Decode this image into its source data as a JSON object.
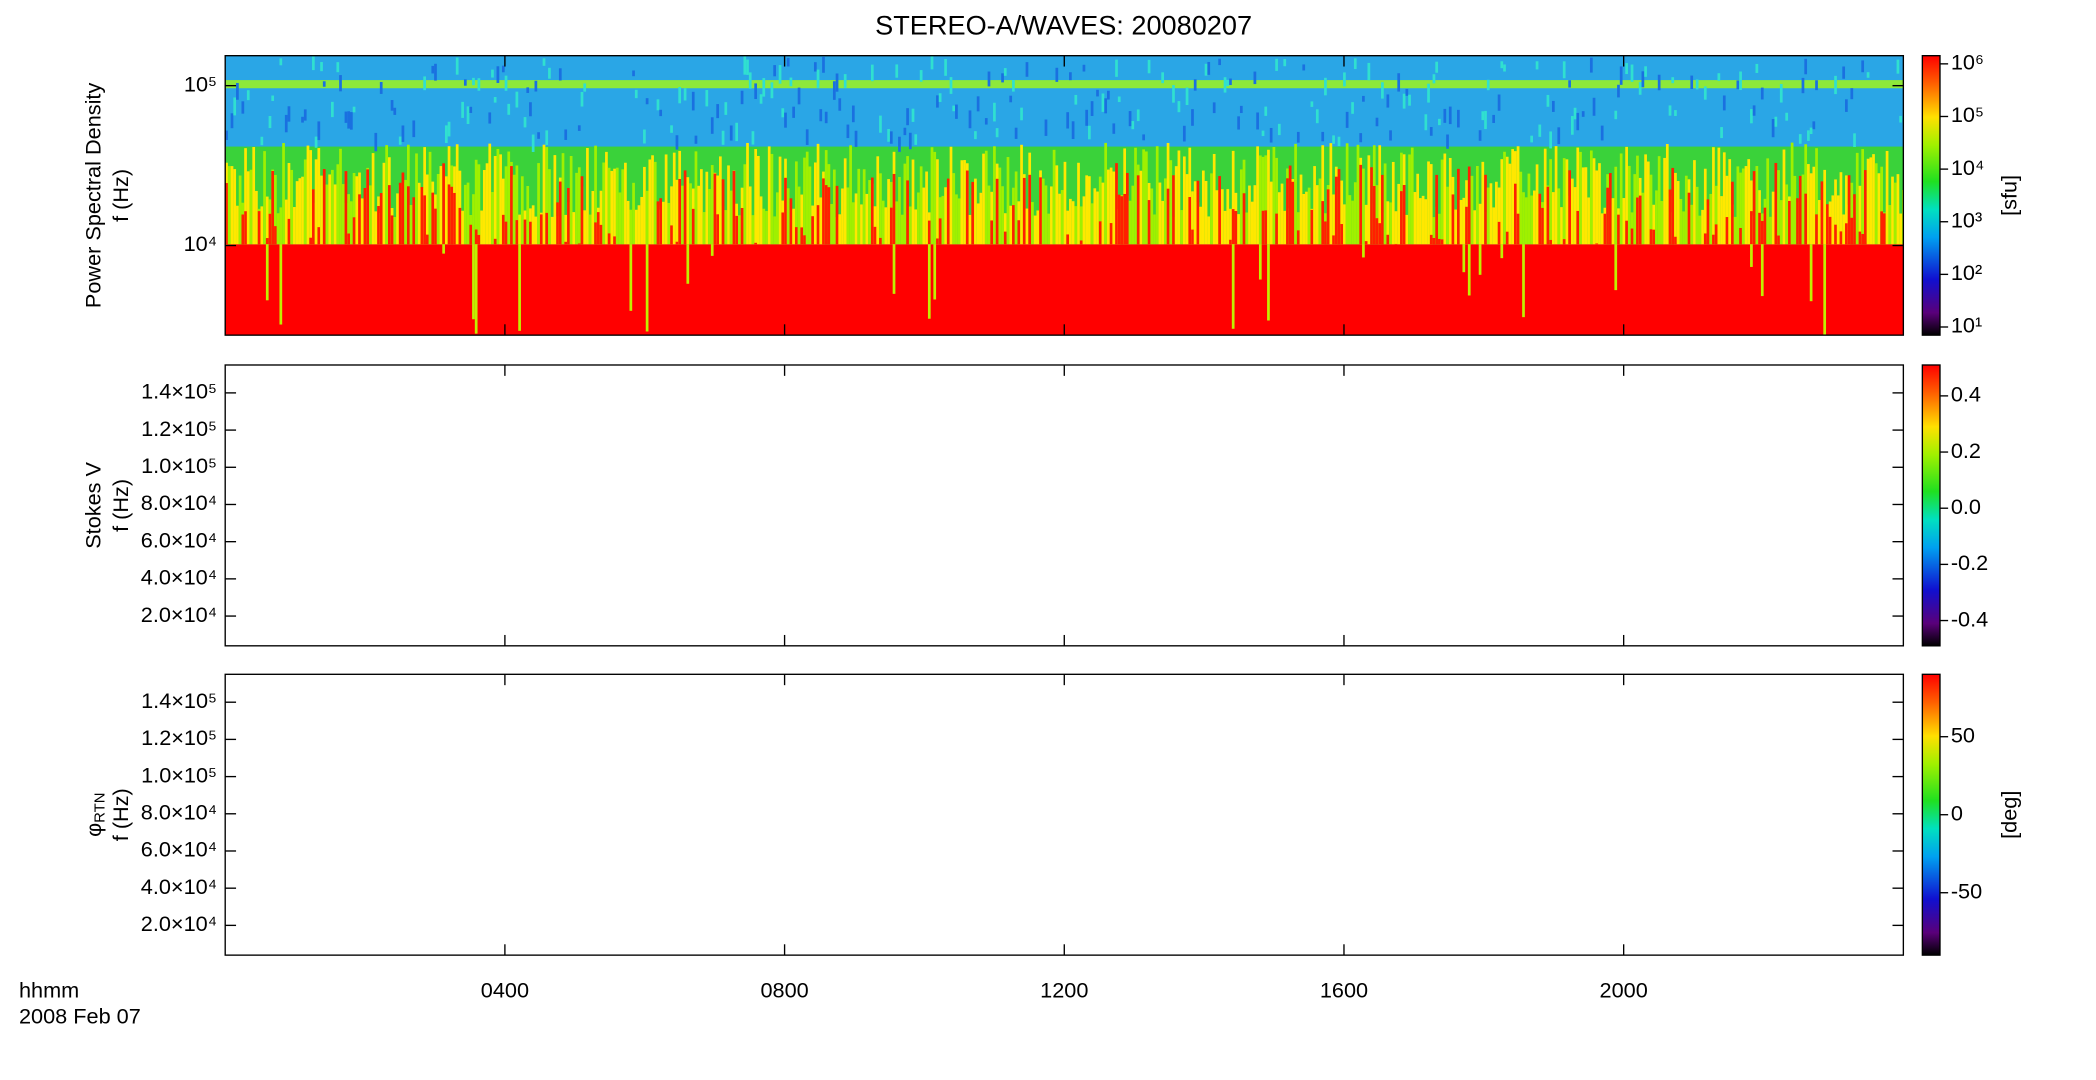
{
  "chart_data": [
    {
      "type": "heatmap",
      "title": "STEREO-A/WAVES: 20080207",
      "ylabel": [
        "Power Spectral Density",
        "f (Hz)"
      ],
      "log_y": true,
      "ylim": [
        2750,
        154000
      ],
      "yticks": [
        {
          "value": 10000,
          "label": "10⁴"
        },
        {
          "value": 100000,
          "label": "10⁵"
        }
      ],
      "colorbar": {
        "log": true,
        "clim": [
          7,
          1430000
        ],
        "label": "[sfu]",
        "ticks": [
          {
            "value": 10,
            "label": "10¹"
          },
          {
            "value": 100,
            "label": "10²"
          },
          {
            "value": 1000,
            "label": "10³"
          },
          {
            "value": 10000,
            "label": "10⁴"
          },
          {
            "value": 100000,
            "label": "10⁵"
          },
          {
            "value": 1000000,
            "label": "10⁶"
          }
        ]
      }
    },
    {
      "type": "heatmap",
      "ylabel": [
        "Stokes V",
        "f (Hz)"
      ],
      "log_y": false,
      "ylim": [
        4000,
        155000
      ],
      "yticks": [
        {
          "value": 20000,
          "label": "2.0×10⁴"
        },
        {
          "value": 40000,
          "label": "4.0×10⁴"
        },
        {
          "value": 60000,
          "label": "6.0×10⁴"
        },
        {
          "value": 80000,
          "label": "8.0×10⁴"
        },
        {
          "value": 100000,
          "label": "1.0×10⁵"
        },
        {
          "value": 120000,
          "label": "1.2×10⁵"
        },
        {
          "value": 140000,
          "label": "1.4×10⁵"
        }
      ],
      "colorbar": {
        "log": false,
        "clim": [
          -0.49,
          0.51
        ],
        "ticks": [
          -0.4,
          -0.2,
          {
            "value": 0,
            "label": "0.0"
          },
          0.2,
          0.4
        ]
      }
    },
    {
      "type": "heatmap",
      "ylabel": [
        [
          "φ",
          "RTN"
        ],
        "f (Hz)"
      ],
      "log_y": false,
      "ylim": [
        4000,
        155000
      ],
      "yticks": [
        {
          "value": 20000,
          "label": "2.0×10⁴"
        },
        {
          "value": 40000,
          "label": "4.0×10⁴"
        },
        {
          "value": 60000,
          "label": "6.0×10⁴"
        },
        {
          "value": 80000,
          "label": "8.0×10⁴"
        },
        {
          "value": 100000,
          "label": "1.0×10⁵"
        },
        {
          "value": 120000,
          "label": "1.2×10⁵"
        },
        {
          "value": 140000,
          "label": "1.4×10⁵"
        }
      ],
      "colorbar": {
        "log": false,
        "clim": [
          -90,
          90
        ],
        "label": "[deg]",
        "ticks": [
          -50,
          0,
          50
        ]
      }
    }
  ],
  "x_axis": {
    "xlim": [
      0,
      24
    ],
    "xticks": [
      {
        "value": 4,
        "label": "0400"
      },
      {
        "value": 8,
        "label": "0800"
      },
      {
        "value": 12,
        "label": "1200"
      },
      {
        "value": 16,
        "label": "1600"
      },
      {
        "value": 20,
        "label": "2000"
      }
    ],
    "labels": [
      "hhmm",
      "2008 Feb 07"
    ]
  }
}
